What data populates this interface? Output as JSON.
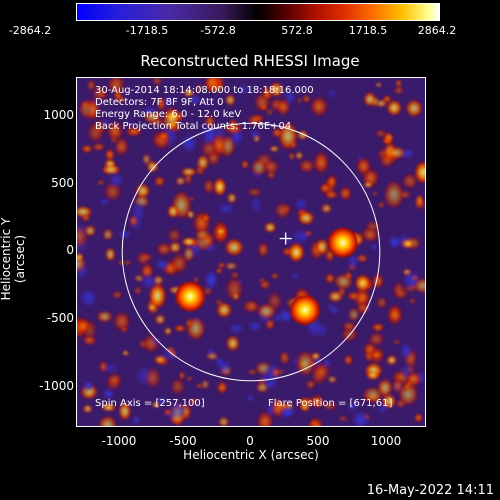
{
  "colorbar": {
    "ticks": [
      "-2864.2",
      "-1718.5",
      "-572.8",
      "572.8",
      "1718.5",
      "2864.2"
    ]
  },
  "title": "Reconstructed RHESSI Image",
  "info": {
    "line1": "30-Aug-2014 18:14:08.000 to 18:18:16.000",
    "line2": "Detectors: 7F 8F 9F, Att 0",
    "line3": "Energy Range: 6.0 - 12.0 keV",
    "line4": "Back Projection    Total counts: 1.76E+04"
  },
  "footer": {
    "spin_axis": "Spin Axis = [257,100]",
    "flare_position": "Flare Position = [671,61]"
  },
  "axes": {
    "xlabel": "Heliocentric X (arcsec)",
    "ylabel": "Heliocentric Y (arcsec)",
    "xticks": [
      "-1000",
      "-500",
      "0",
      "500",
      "1000"
    ],
    "yticks": [
      "1000",
      "500",
      "0",
      "-500",
      "-1000"
    ],
    "xrange": [
      -1290,
      1290
    ],
    "yrange": [
      -1290,
      1290
    ]
  },
  "features": {
    "solar_limb_radius_arcsec": 955,
    "spin_axis_center": [
      257,
      100
    ],
    "bright_sources": [
      {
        "x": 680,
        "y": 70,
        "label": ""
      },
      {
        "x": -450,
        "y": -330,
        "label": ""
      },
      {
        "x": 400,
        "y": -430,
        "label": ""
      }
    ]
  },
  "stamp": "16-May-2022 14:11",
  "colors": {
    "background": "#3a1a6a",
    "limb": "#ffffff",
    "axis": "#ffffff"
  }
}
